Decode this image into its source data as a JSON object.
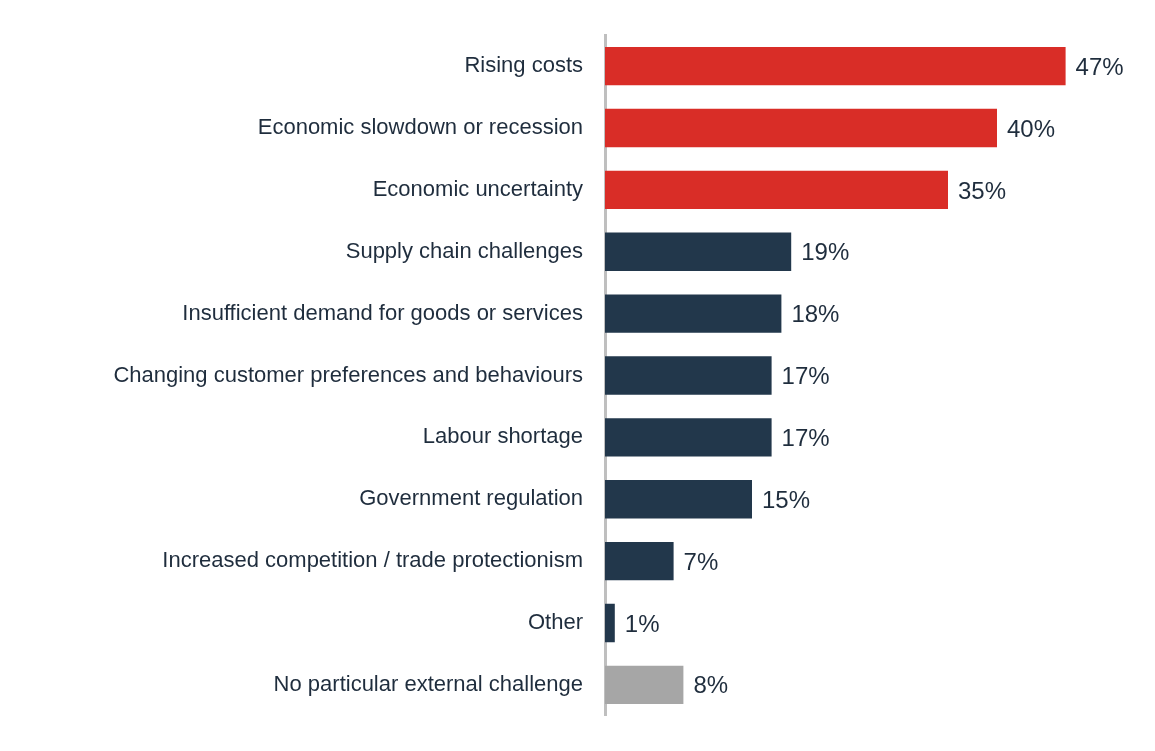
{
  "chart_data": {
    "type": "bar",
    "orientation": "horizontal",
    "categories": [
      "Rising costs",
      "Economic slowdown or recession",
      "Economic uncertainty",
      "Supply chain challenges",
      "Insufficient demand for goods or services",
      "Changing customer preferences and behaviours",
      "Labour shortage",
      "Government regulation",
      "Increased competition / trade protectionism",
      "Other",
      "No particular external challenge"
    ],
    "values": [
      47,
      40,
      35,
      19,
      18,
      17,
      17,
      15,
      7,
      1,
      8
    ],
    "colors": [
      "#d92d27",
      "#d92d27",
      "#d92d27",
      "#22374b",
      "#22374b",
      "#22374b",
      "#22374b",
      "#22374b",
      "#22374b",
      "#22374b",
      "#a6a6a6"
    ],
    "value_labels": [
      "47%",
      "40%",
      "35%",
      "19%",
      "18%",
      "17%",
      "17%",
      "15%",
      "7%",
      "1%",
      "8%"
    ],
    "tick_labels": "y",
    "legend": false
  }
}
